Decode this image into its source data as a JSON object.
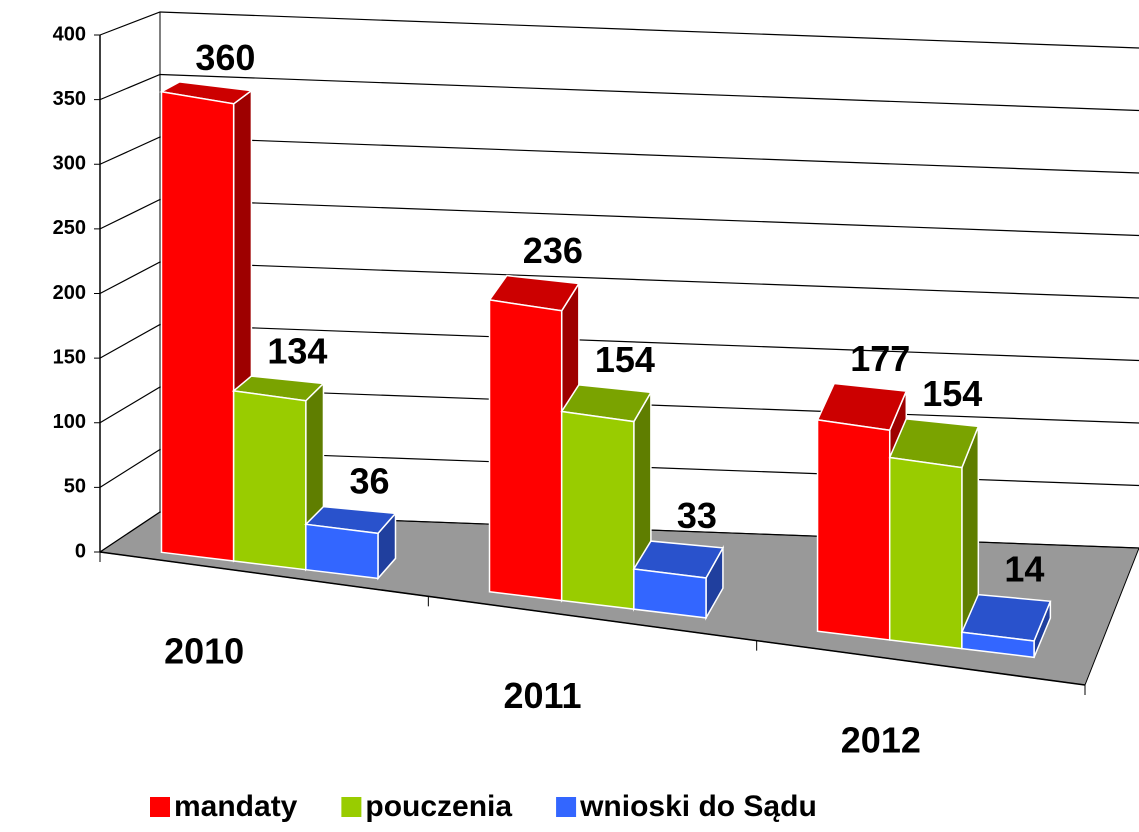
{
  "chart_data": {
    "type": "bar3d",
    "categories": [
      "2010",
      "2011",
      "2012"
    ],
    "series": [
      {
        "name": "mandaty",
        "color": "#ff0000",
        "values": [
          360,
          236,
          177
        ]
      },
      {
        "name": "pouczenia",
        "color": "#99cc00",
        "values": [
          134,
          154,
          154
        ]
      },
      {
        "name": "wnioski do Sądu",
        "color": "#3366ff",
        "values": [
          36,
          33,
          14
        ]
      }
    ],
    "ylim": [
      0,
      400
    ],
    "yticks": [
      0,
      50,
      100,
      150,
      200,
      250,
      300,
      350,
      400
    ],
    "grid": true,
    "legend": "bottom"
  }
}
